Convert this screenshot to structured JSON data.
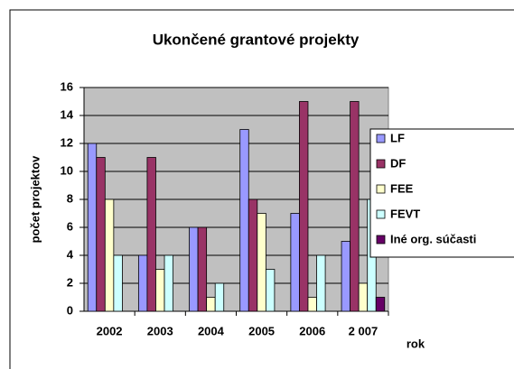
{
  "chart_data": {
    "type": "bar",
    "title": "Ukončené grantové projekty",
    "x_label": "rok",
    "y_label": "počet projektov",
    "categories": [
      "2002",
      "2003",
      "2004",
      "2005",
      "2006",
      "2 007"
    ],
    "series": [
      {
        "name": "LF",
        "color": "#9999ff",
        "values": [
          12,
          4,
          6,
          13,
          7,
          5
        ]
      },
      {
        "name": "DF",
        "color": "#993366",
        "values": [
          11,
          11,
          6,
          8,
          15,
          15
        ]
      },
      {
        "name": "FEE",
        "color": "#ffffcc",
        "values": [
          8,
          3,
          1,
          7,
          1,
          2
        ]
      },
      {
        "name": "FEVT",
        "color": "#ccffff",
        "values": [
          4,
          4,
          2,
          3,
          4,
          8
        ]
      },
      {
        "name": "Iné org. súčasti",
        "color": "#660066",
        "values": [
          0,
          0,
          0,
          0,
          0,
          1
        ]
      }
    ],
    "ylim": [
      0,
      16
    ],
    "yticks": [
      0,
      2,
      4,
      6,
      8,
      10,
      12,
      14,
      16
    ],
    "grid": true,
    "legend": "right"
  }
}
